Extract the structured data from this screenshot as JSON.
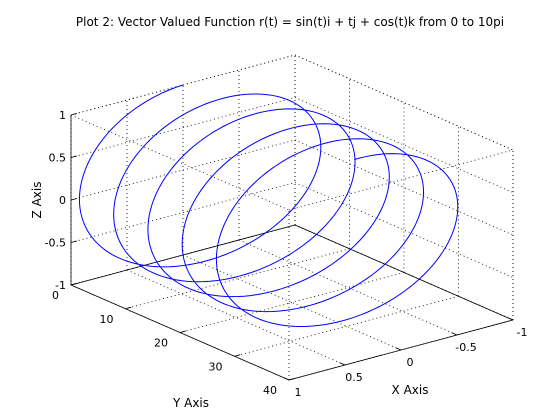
{
  "chart_data": {
    "type": "line",
    "projection": "3d",
    "title": "Plot 2: Vector Valued Function r(t) = sin(t)i + tj + cos(t)k from 0 to 10pi",
    "xlabel": "X Axis",
    "ylabel": "Y Axis",
    "zlabel": "Z Axis",
    "xlim": [
      -1,
      1
    ],
    "ylim": [
      0,
      40
    ],
    "zlim": [
      -1,
      1
    ],
    "x_direction": "reversed",
    "xticks": [
      {
        "value": 1,
        "label": "1"
      },
      {
        "value": 0.5,
        "label": "0.5"
      },
      {
        "value": 0,
        "label": "0"
      },
      {
        "value": -0.5,
        "label": "-0.5"
      },
      {
        "value": -1,
        "label": "-1"
      }
    ],
    "yticks": [
      {
        "value": 0,
        "label": "0"
      },
      {
        "value": 10,
        "label": "10"
      },
      {
        "value": 20,
        "label": "20"
      },
      {
        "value": 30,
        "label": "30"
      },
      {
        "value": 40,
        "label": "40"
      }
    ],
    "zticks": [
      {
        "value": 1,
        "label": "1"
      },
      {
        "value": 0.5,
        "label": "0.5"
      },
      {
        "value": 0,
        "label": "0"
      },
      {
        "value": -0.5,
        "label": "-0.5"
      },
      {
        "value": -1,
        "label": "-1"
      }
    ],
    "grid": true,
    "box": true,
    "series": [
      {
        "x": "sin(t)",
        "y": "t",
        "z": "cos(t)",
        "t_range": [
          0,
          31.4159
        ],
        "samples": 600,
        "color": "#0000ff"
      }
    ]
  }
}
